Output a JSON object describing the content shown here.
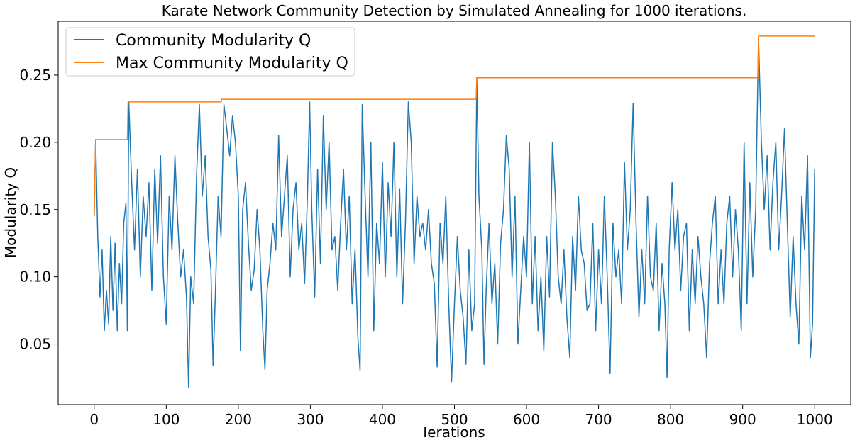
{
  "chart_data": {
    "type": "line",
    "title": "Karate Network Community Detection by Simulated Annealing for 1000 iterations.",
    "xlabel": "Ierations",
    "ylabel": "Modularity Q",
    "xlim": [
      -50,
      1050
    ],
    "ylim": [
      0.005,
      0.29
    ],
    "xticks": [
      0,
      100,
      200,
      300,
      400,
      500,
      600,
      700,
      800,
      900,
      1000
    ],
    "xtick_labels": [
      "0",
      "100",
      "200",
      "300",
      "400",
      "500",
      "600",
      "700",
      "800",
      "900",
      "1000"
    ],
    "yticks": [
      0.05,
      0.1,
      0.15,
      0.2,
      0.25
    ],
    "ytick_labels": [
      "0.05",
      "0.10",
      "0.15",
      "0.20",
      "0.25"
    ],
    "grid": false,
    "legend_position": "top-left",
    "series": [
      {
        "name": "Community Modularity Q",
        "color": "#1f77b4",
        "points": [
          [
            0,
            0.145
          ],
          [
            2,
            0.202
          ],
          [
            5,
            0.13
          ],
          [
            8,
            0.085
          ],
          [
            11,
            0.12
          ],
          [
            14,
            0.06
          ],
          [
            17,
            0.09
          ],
          [
            20,
            0.065
          ],
          [
            23,
            0.13
          ],
          [
            26,
            0.075
          ],
          [
            29,
            0.125
          ],
          [
            32,
            0.06
          ],
          [
            35,
            0.11
          ],
          [
            38,
            0.08
          ],
          [
            41,
            0.14
          ],
          [
            44,
            0.155
          ],
          [
            46,
            0.06
          ],
          [
            48,
            0.23
          ],
          [
            52,
            0.17
          ],
          [
            56,
            0.12
          ],
          [
            60,
            0.18
          ],
          [
            64,
            0.1
          ],
          [
            68,
            0.16
          ],
          [
            72,
            0.13
          ],
          [
            76,
            0.17
          ],
          [
            80,
            0.09
          ],
          [
            84,
            0.18
          ],
          [
            88,
            0.125
          ],
          [
            92,
            0.19
          ],
          [
            96,
            0.1
          ],
          [
            100,
            0.065
          ],
          [
            104,
            0.16
          ],
          [
            108,
            0.12
          ],
          [
            112,
            0.19
          ],
          [
            116,
            0.14
          ],
          [
            120,
            0.1
          ],
          [
            124,
            0.12
          ],
          [
            128,
            0.085
          ],
          [
            131,
            0.018
          ],
          [
            134,
            0.1
          ],
          [
            138,
            0.08
          ],
          [
            142,
            0.175
          ],
          [
            146,
            0.228
          ],
          [
            150,
            0.16
          ],
          [
            154,
            0.19
          ],
          [
            158,
            0.13
          ],
          [
            162,
            0.105
          ],
          [
            165,
            0.034
          ],
          [
            168,
            0.085
          ],
          [
            172,
            0.16
          ],
          [
            176,
            0.13
          ],
          [
            180,
            0.228
          ],
          [
            184,
            0.21
          ],
          [
            188,
            0.19
          ],
          [
            192,
            0.22
          ],
          [
            196,
            0.2
          ],
          [
            200,
            0.16
          ],
          [
            203,
            0.045
          ],
          [
            206,
            0.15
          ],
          [
            210,
            0.17
          ],
          [
            214,
            0.125
          ],
          [
            218,
            0.09
          ],
          [
            222,
            0.105
          ],
          [
            226,
            0.15
          ],
          [
            230,
            0.12
          ],
          [
            234,
            0.06
          ],
          [
            237,
            0.031
          ],
          [
            240,
            0.09
          ],
          [
            244,
            0.11
          ],
          [
            248,
            0.14
          ],
          [
            252,
            0.12
          ],
          [
            256,
            0.205
          ],
          [
            260,
            0.13
          ],
          [
            264,
            0.16
          ],
          [
            268,
            0.19
          ],
          [
            272,
            0.1
          ],
          [
            276,
            0.15
          ],
          [
            280,
            0.17
          ],
          [
            284,
            0.12
          ],
          [
            288,
            0.14
          ],
          [
            292,
            0.095
          ],
          [
            296,
            0.16
          ],
          [
            299,
            0.23
          ],
          [
            302,
            0.15
          ],
          [
            306,
            0.085
          ],
          [
            310,
            0.18
          ],
          [
            314,
            0.11
          ],
          [
            318,
            0.22
          ],
          [
            322,
            0.15
          ],
          [
            326,
            0.2
          ],
          [
            330,
            0.12
          ],
          [
            334,
            0.13
          ],
          [
            338,
            0.09
          ],
          [
            342,
            0.14
          ],
          [
            346,
            0.18
          ],
          [
            350,
            0.12
          ],
          [
            354,
            0.16
          ],
          [
            358,
            0.08
          ],
          [
            362,
            0.12
          ],
          [
            366,
            0.055
          ],
          [
            369,
            0.03
          ],
          [
            372,
            0.228
          ],
          [
            376,
            0.16
          ],
          [
            380,
            0.1
          ],
          [
            384,
            0.2
          ],
          [
            388,
            0.06
          ],
          [
            392,
            0.14
          ],
          [
            396,
            0.11
          ],
          [
            400,
            0.185
          ],
          [
            404,
            0.1
          ],
          [
            408,
            0.17
          ],
          [
            412,
            0.13
          ],
          [
            416,
            0.2
          ],
          [
            420,
            0.1
          ],
          [
            424,
            0.165
          ],
          [
            428,
            0.08
          ],
          [
            432,
            0.14
          ],
          [
            436,
            0.23
          ],
          [
            440,
            0.2
          ],
          [
            444,
            0.11
          ],
          [
            448,
            0.16
          ],
          [
            452,
            0.13
          ],
          [
            456,
            0.14
          ],
          [
            460,
            0.12
          ],
          [
            464,
            0.15
          ],
          [
            468,
            0.11
          ],
          [
            472,
            0.095
          ],
          [
            476,
            0.033
          ],
          [
            480,
            0.14
          ],
          [
            484,
            0.11
          ],
          [
            488,
            0.16
          ],
          [
            492,
            0.08
          ],
          [
            496,
            0.022
          ],
          [
            500,
            0.08
          ],
          [
            504,
            0.13
          ],
          [
            508,
            0.09
          ],
          [
            512,
            0.07
          ],
          [
            516,
            0.035
          ],
          [
            520,
            0.12
          ],
          [
            524,
            0.06
          ],
          [
            528,
            0.08
          ],
          [
            531,
            0.248
          ],
          [
            534,
            0.16
          ],
          [
            538,
            0.12
          ],
          [
            541,
            0.035
          ],
          [
            544,
            0.09
          ],
          [
            548,
            0.14
          ],
          [
            552,
            0.08
          ],
          [
            556,
            0.11
          ],
          [
            560,
            0.05
          ],
          [
            564,
            0.125
          ],
          [
            568,
            0.15
          ],
          [
            572,
            0.205
          ],
          [
            576,
            0.18
          ],
          [
            580,
            0.1
          ],
          [
            584,
            0.16
          ],
          [
            588,
            0.05
          ],
          [
            592,
            0.09
          ],
          [
            596,
            0.13
          ],
          [
            600,
            0.1
          ],
          [
            604,
            0.2
          ],
          [
            608,
            0.08
          ],
          [
            612,
            0.13
          ],
          [
            616,
            0.06
          ],
          [
            620,
            0.1
          ],
          [
            624,
            0.045
          ],
          [
            628,
            0.13
          ],
          [
            632,
            0.085
          ],
          [
            636,
            0.2
          ],
          [
            640,
            0.16
          ],
          [
            644,
            0.1
          ],
          [
            648,
            0.08
          ],
          [
            652,
            0.12
          ],
          [
            656,
            0.07
          ],
          [
            660,
            0.04
          ],
          [
            664,
            0.13
          ],
          [
            668,
            0.09
          ],
          [
            672,
            0.16
          ],
          [
            676,
            0.12
          ],
          [
            680,
            0.11
          ],
          [
            684,
            0.075
          ],
          [
            688,
            0.08
          ],
          [
            692,
            0.14
          ],
          [
            696,
            0.06
          ],
          [
            700,
            0.12
          ],
          [
            704,
            0.08
          ],
          [
            708,
            0.16
          ],
          [
            712,
            0.1
          ],
          [
            716,
            0.028
          ],
          [
            720,
            0.14
          ],
          [
            724,
            0.1
          ],
          [
            728,
            0.12
          ],
          [
            732,
            0.08
          ],
          [
            736,
            0.185
          ],
          [
            740,
            0.12
          ],
          [
            744,
            0.15
          ],
          [
            748,
            0.229
          ],
          [
            752,
            0.14
          ],
          [
            756,
            0.07
          ],
          [
            760,
            0.12
          ],
          [
            764,
            0.08
          ],
          [
            768,
            0.16
          ],
          [
            772,
            0.1
          ],
          [
            776,
            0.09
          ],
          [
            780,
            0.14
          ],
          [
            784,
            0.06
          ],
          [
            788,
            0.11
          ],
          [
            792,
            0.08
          ],
          [
            795,
            0.025
          ],
          [
            798,
            0.12
          ],
          [
            802,
            0.17
          ],
          [
            806,
            0.12
          ],
          [
            810,
            0.15
          ],
          [
            814,
            0.09
          ],
          [
            818,
            0.13
          ],
          [
            822,
            0.14
          ],
          [
            826,
            0.06
          ],
          [
            830,
            0.12
          ],
          [
            834,
            0.08
          ],
          [
            838,
            0.13
          ],
          [
            842,
            0.1
          ],
          [
            846,
            0.08
          ],
          [
            850,
            0.04
          ],
          [
            854,
            0.11
          ],
          [
            858,
            0.14
          ],
          [
            862,
            0.16
          ],
          [
            866,
            0.08
          ],
          [
            870,
            0.12
          ],
          [
            874,
            0.08
          ],
          [
            878,
            0.14
          ],
          [
            882,
            0.16
          ],
          [
            886,
            0.1
          ],
          [
            890,
            0.15
          ],
          [
            894,
            0.12
          ],
          [
            898,
            0.06
          ],
          [
            902,
            0.2
          ],
          [
            906,
            0.08
          ],
          [
            910,
            0.17
          ],
          [
            914,
            0.1
          ],
          [
            918,
            0.15
          ],
          [
            922,
            0.278
          ],
          [
            926,
            0.2
          ],
          [
            930,
            0.15
          ],
          [
            934,
            0.19
          ],
          [
            938,
            0.12
          ],
          [
            942,
            0.17
          ],
          [
            946,
            0.2
          ],
          [
            950,
            0.12
          ],
          [
            954,
            0.16
          ],
          [
            958,
            0.21
          ],
          [
            962,
            0.14
          ],
          [
            966,
            0.07
          ],
          [
            970,
            0.13
          ],
          [
            974,
            0.08
          ],
          [
            978,
            0.05
          ],
          [
            982,
            0.16
          ],
          [
            986,
            0.12
          ],
          [
            990,
            0.19
          ],
          [
            994,
            0.04
          ],
          [
            997,
            0.065
          ],
          [
            1000,
            0.18
          ]
        ]
      },
      {
        "name": "Max Community Modularity Q",
        "color": "#ff7f0e",
        "points": [
          [
            0,
            0.145
          ],
          [
            2,
            0.202
          ],
          [
            46,
            0.202
          ],
          [
            47,
            0.23
          ],
          [
            176,
            0.23
          ],
          [
            177,
            0.232
          ],
          [
            530,
            0.232
          ],
          [
            531,
            0.248
          ],
          [
            921,
            0.248
          ],
          [
            922,
            0.279
          ],
          [
            1000,
            0.279
          ]
        ]
      }
    ]
  }
}
